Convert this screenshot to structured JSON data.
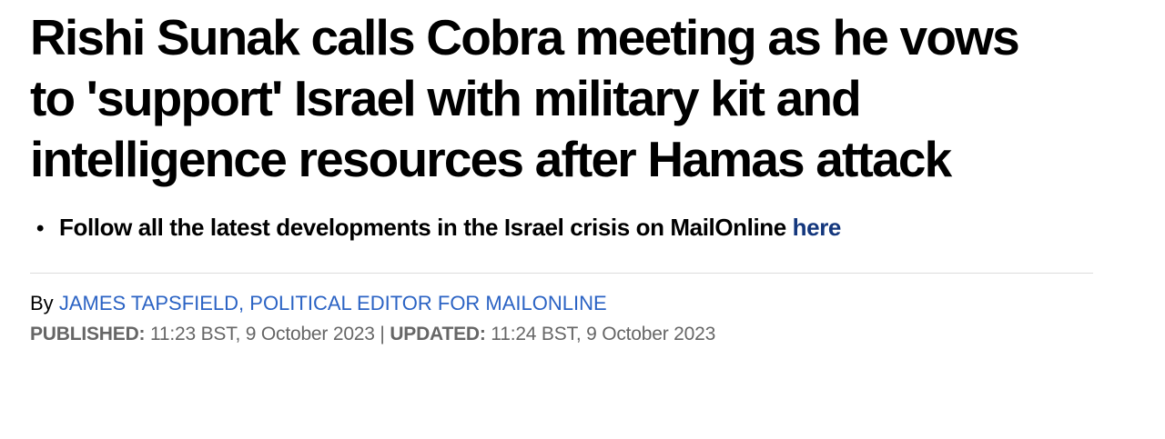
{
  "article": {
    "headline": "Rishi Sunak calls Cobra meeting as he vows to 'support' Israel with military kit and intelligence resources after Hamas attack",
    "bullet_glyph": "•",
    "bullets": [
      {
        "text": "Follow all the latest developments in the Israel crisis on MailOnline",
        "link_text": "here"
      }
    ],
    "byline": {
      "prefix": "By",
      "author_link": "JAMES TAPSFIELD, POLITICAL EDITOR FOR MAILONLINE"
    },
    "meta": {
      "published_label": "PUBLISHED:",
      "published_value": "11:23 BST, 9 October 2023",
      "separator": "|",
      "updated_label": "UPDATED:",
      "updated_value": "11:24 BST, 9 October 2023"
    }
  },
  "colors": {
    "headline_text": "#000000",
    "bullet_link": "#14377d",
    "byline_link": "#2b63c4",
    "meta_text": "#666666",
    "divider": "#dcdcdc",
    "background": "#ffffff"
  }
}
